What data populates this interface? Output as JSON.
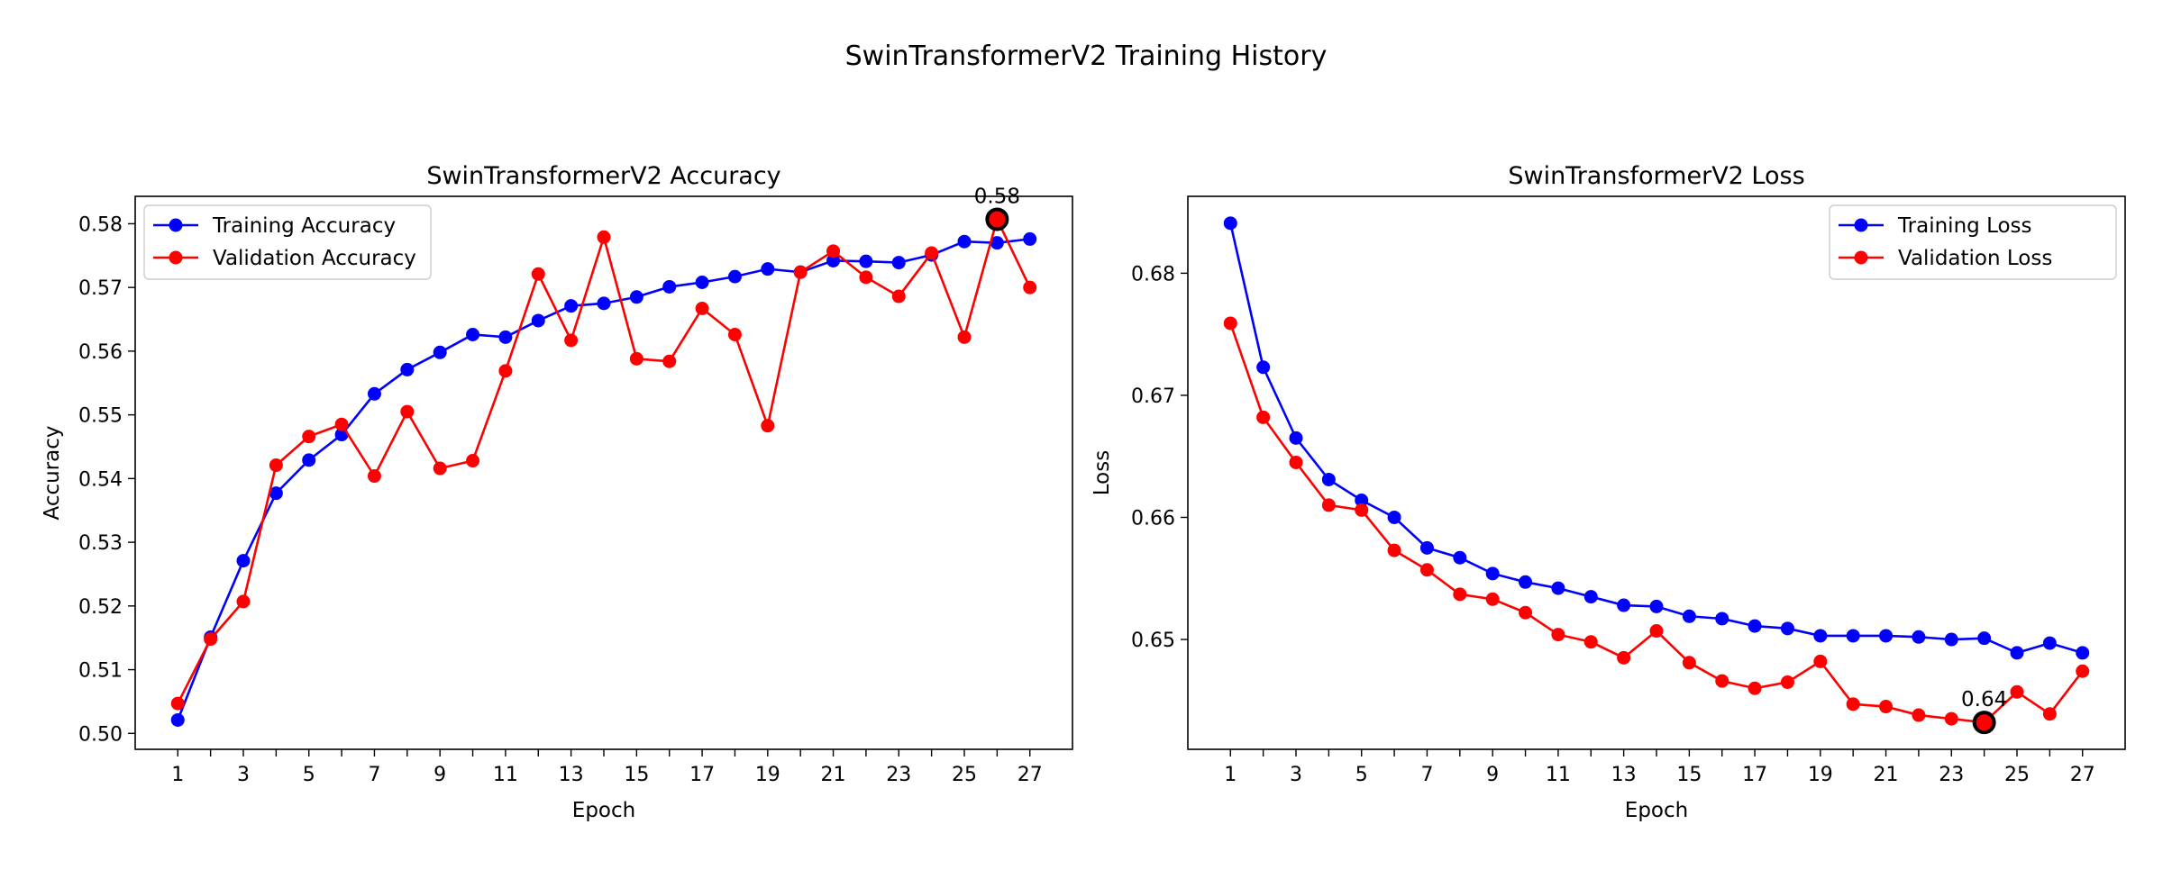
{
  "suptitle": "SwinTransformerV2 Training History",
  "chart_data": [
    {
      "type": "line",
      "title": "SwinTransformerV2 Accuracy",
      "xlabel": "Epoch",
      "ylabel": "Accuracy",
      "x": [
        1,
        2,
        3,
        4,
        5,
        6,
        7,
        8,
        9,
        10,
        11,
        12,
        13,
        14,
        15,
        16,
        17,
        18,
        19,
        20,
        21,
        22,
        23,
        24,
        25,
        26,
        27
      ],
      "xticks": [
        1,
        3,
        5,
        7,
        9,
        11,
        13,
        15,
        17,
        19,
        21,
        23,
        25,
        27
      ],
      "xlim": [
        -0.3,
        28.3
      ],
      "yticks": [
        "0.50",
        "0.51",
        "0.52",
        "0.53",
        "0.54",
        "0.55",
        "0.56",
        "0.57",
        "0.58"
      ],
      "ylim": [
        0.4975,
        0.5843
      ],
      "legend_loc": "upper-left",
      "grid": false,
      "series": [
        {
          "name": "Training Accuracy",
          "color": "#0000ff",
          "values": [
            0.5021,
            0.5151,
            0.5271,
            0.5377,
            0.5429,
            0.5469,
            0.5533,
            0.5571,
            0.5598,
            0.5626,
            0.5622,
            0.5648,
            0.5671,
            0.5675,
            0.5685,
            0.5701,
            0.5708,
            0.5717,
            0.5729,
            0.5724,
            0.5742,
            0.5741,
            0.5739,
            0.5751,
            0.5772,
            0.577,
            0.5776
          ]
        },
        {
          "name": "Validation Accuracy",
          "color": "#ff0000",
          "values": [
            0.5047,
            0.5148,
            0.5207,
            0.5421,
            0.5466,
            0.5485,
            0.5404,
            0.5505,
            0.5416,
            0.5428,
            0.5569,
            0.5721,
            0.5617,
            0.5779,
            0.5588,
            0.5584,
            0.5667,
            0.5626,
            0.5483,
            0.5724,
            0.5757,
            0.5716,
            0.5686,
            0.5754,
            0.5622,
            0.5807,
            0.57
          ]
        }
      ],
      "highlight": {
        "series": 1,
        "index": 25,
        "label": "0.58"
      }
    },
    {
      "type": "line",
      "title": "SwinTransformerV2 Loss",
      "xlabel": "Epoch",
      "ylabel": "Loss",
      "x": [
        1,
        2,
        3,
        4,
        5,
        6,
        7,
        8,
        9,
        10,
        11,
        12,
        13,
        14,
        15,
        16,
        17,
        18,
        19,
        20,
        21,
        22,
        23,
        24,
        25,
        26,
        27
      ],
      "xticks": [
        1,
        3,
        5,
        7,
        9,
        11,
        13,
        15,
        17,
        19,
        21,
        23,
        25,
        27
      ],
      "xlim": [
        -0.3,
        28.3
      ],
      "yticks": [
        "0.65",
        "0.66",
        "0.67",
        "0.68"
      ],
      "ylim": [
        0.641,
        0.6863
      ],
      "legend_loc": "upper-right",
      "grid": false,
      "series": [
        {
          "name": "Training Loss",
          "color": "#0000ff",
          "values": [
            0.6841,
            0.6723,
            0.6665,
            0.6631,
            0.6614,
            0.66,
            0.6575,
            0.6567,
            0.6554,
            0.6547,
            0.6542,
            0.6535,
            0.6528,
            0.6527,
            0.6519,
            0.6517,
            0.6511,
            0.6509,
            0.6503,
            0.6503,
            0.6503,
            0.6502,
            0.65,
            0.6501,
            0.6489,
            0.6497,
            0.6489
          ]
        },
        {
          "name": "Validation Loss",
          "color": "#ff0000",
          "values": [
            0.6759,
            0.6682,
            0.6645,
            0.661,
            0.6606,
            0.6573,
            0.6557,
            0.6537,
            0.6533,
            0.6522,
            0.6504,
            0.6498,
            0.6485,
            0.6507,
            0.6481,
            0.6466,
            0.646,
            0.6465,
            0.6482,
            0.6447,
            0.6445,
            0.6438,
            0.6435,
            0.6432,
            0.6457,
            0.6439,
            0.6474
          ]
        }
      ],
      "highlight": {
        "series": 1,
        "index": 23,
        "label": "0.64"
      }
    }
  ]
}
